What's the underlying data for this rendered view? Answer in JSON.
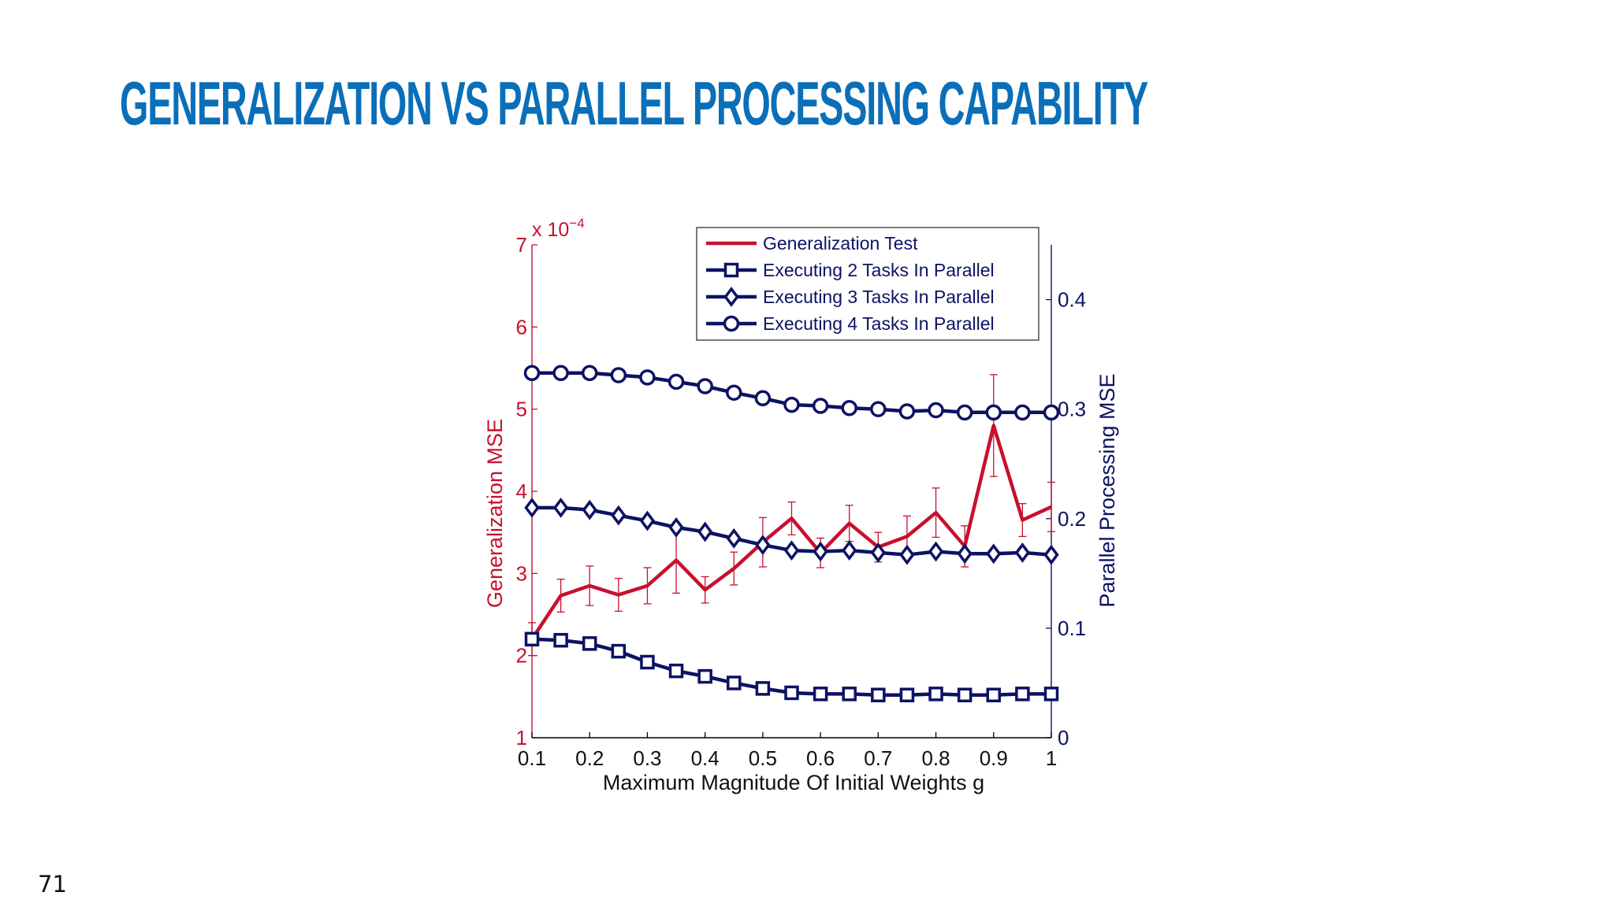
{
  "slide": {
    "title": "GENERALIZATION VS PARALLEL PROCESSING CAPABILITY",
    "number": "71"
  },
  "colors": {
    "title": "#0a6fb8",
    "generalization": "#c8102e",
    "parallel": "#0c1263",
    "axis": "#000000"
  },
  "chart_data": {
    "type": "line",
    "title": "",
    "xlabel": "Maximum Magnitude Of Initial Weights g",
    "ylabel_left": "Generalization MSE",
    "ylabel_right": "Parallel Processing MSE",
    "left_multiplier_label": "x 10",
    "left_multiplier_exponent": "−4",
    "xlim": [
      0.1,
      1
    ],
    "ylim_left": [
      1,
      7
    ],
    "ylim_right": [
      0,
      0.45
    ],
    "x_ticks": [
      0.1,
      0.2,
      0.3,
      0.4,
      0.5,
      0.6,
      0.7,
      0.8,
      0.9,
      1
    ],
    "x_tick_labels": [
      "0.1",
      "0.2",
      "0.3",
      "0.4",
      "0.5",
      "0.6",
      "0.7",
      "0.8",
      "0.9",
      "1"
    ],
    "left_ticks": [
      1,
      2,
      3,
      4,
      5,
      6,
      7
    ],
    "left_tick_labels": [
      "1",
      "2",
      "3",
      "4",
      "5",
      "6",
      "7"
    ],
    "right_ticks": [
      0,
      0.1,
      0.2,
      0.3,
      0.4
    ],
    "right_tick_labels": [
      "0",
      "0.1",
      "0.2",
      "0.3",
      "0.4"
    ],
    "legend_position": "top-right",
    "grid": false,
    "x": [
      0.1,
      0.15,
      0.2,
      0.25,
      0.3,
      0.35,
      0.4,
      0.45,
      0.5,
      0.55,
      0.6,
      0.65,
      0.7,
      0.75,
      0.8,
      0.85,
      0.9,
      0.95,
      1
    ],
    "series": [
      {
        "name": "Generalization Test",
        "axis": "left",
        "marker": "none",
        "color": "#c8102e",
        "values": [
          2.2,
          2.73,
          2.85,
          2.74,
          2.85,
          3.16,
          2.8,
          3.06,
          3.38,
          3.67,
          3.25,
          3.61,
          3.32,
          3.45,
          3.74,
          3.33,
          4.8,
          3.65,
          3.81
        ],
        "errors": [
          0.2,
          0.2,
          0.24,
          0.2,
          0.22,
          0.4,
          0.16,
          0.2,
          0.3,
          0.2,
          0.18,
          0.22,
          0.18,
          0.25,
          0.3,
          0.25,
          0.62,
          0.2,
          0.3
        ]
      },
      {
        "name": "Executing 2 Tasks In Parallel",
        "axis": "right",
        "marker": "square",
        "color": "#0c1263",
        "values": [
          0.09,
          0.089,
          0.086,
          0.079,
          0.069,
          0.061,
          0.056,
          0.05,
          0.045,
          0.041,
          0.04,
          0.04,
          0.039,
          0.039,
          0.04,
          0.039,
          0.039,
          0.04,
          0.04
        ]
      },
      {
        "name": "Executing 3 Tasks In Parallel",
        "axis": "right",
        "marker": "diamond",
        "color": "#0c1263",
        "values": [
          0.21,
          0.21,
          0.208,
          0.203,
          0.198,
          0.192,
          0.188,
          0.182,
          0.176,
          0.171,
          0.17,
          0.171,
          0.169,
          0.167,
          0.17,
          0.168,
          0.168,
          0.169,
          0.167
        ]
      },
      {
        "name": "Executing 4 Tasks In Parallel",
        "axis": "right",
        "marker": "circle",
        "color": "#0c1263",
        "values": [
          0.333,
          0.333,
          0.333,
          0.331,
          0.329,
          0.325,
          0.321,
          0.315,
          0.31,
          0.304,
          0.303,
          0.301,
          0.3,
          0.298,
          0.299,
          0.297,
          0.297,
          0.297,
          0.297
        ]
      }
    ]
  }
}
